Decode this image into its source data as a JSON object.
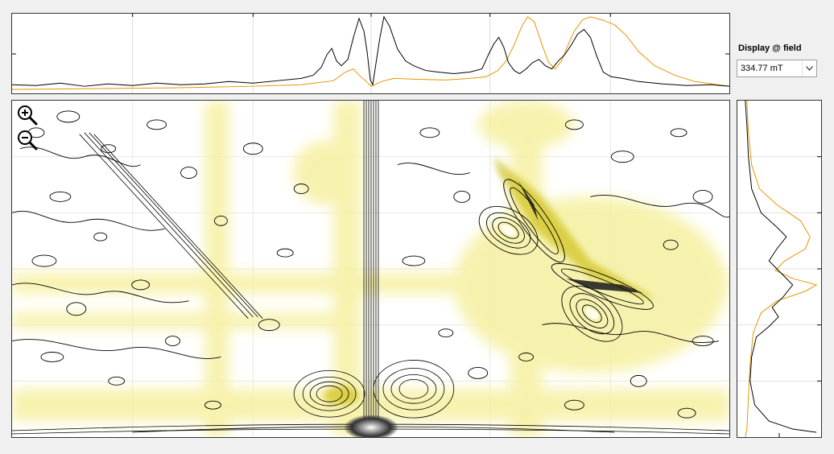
{
  "field_selector": {
    "label": "Display @ field",
    "value": "334.77 mT"
  },
  "colors": {
    "experiment": "#000000",
    "simulation": "#e69500",
    "highlight": "#f5ef9a",
    "highlight_strong": "#b8a800"
  },
  "icons": {
    "zoom_in": "zoom-in-magnifier",
    "zoom_out": "zoom-out-magnifier",
    "dropdown": "chevron-down"
  }
}
